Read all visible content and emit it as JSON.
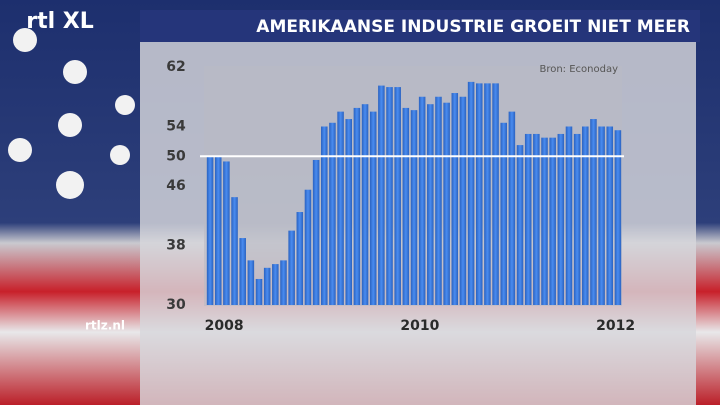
{
  "logo": "rtl XL",
  "footer": "rtlz.nl",
  "chart_data": {
    "type": "bar",
    "title": "AMERIKAANSE INDUSTRIE GROEIT NIET MEER",
    "source": "Bron: Econoday",
    "categories": [
      "2008",
      null,
      null,
      null,
      null,
      null,
      null,
      null,
      null,
      null,
      null,
      null,
      null,
      null,
      null,
      null,
      null,
      null,
      null,
      null,
      null,
      null,
      null,
      null,
      "2010",
      null,
      null,
      null,
      null,
      null,
      null,
      null,
      null,
      null,
      null,
      null,
      null,
      null,
      null,
      null,
      null,
      null,
      null,
      null,
      null,
      null,
      null,
      null,
      "2012",
      null,
      null
    ],
    "values": [
      50,
      50,
      49.3,
      44.5,
      39,
      36,
      33.5,
      35,
      35.5,
      36,
      40,
      42.5,
      45.5,
      49.5,
      54,
      54.5,
      56,
      55,
      56.5,
      57,
      56,
      59.5,
      59.3,
      59.3,
      56.5,
      56.2,
      58,
      57,
      58,
      57.2,
      58.5,
      58,
      60,
      59.8,
      59.8,
      59.8,
      54.5,
      56,
      51.5,
      53,
      53,
      52.5,
      52.5,
      53,
      54,
      53,
      54,
      55,
      54,
      54,
      53.5
    ],
    "color": "#3d7fe0",
    "ylim": [
      30,
      62
    ],
    "yticks": [
      30,
      38,
      46,
      50,
      54,
      62
    ],
    "reference_line": 50
  }
}
